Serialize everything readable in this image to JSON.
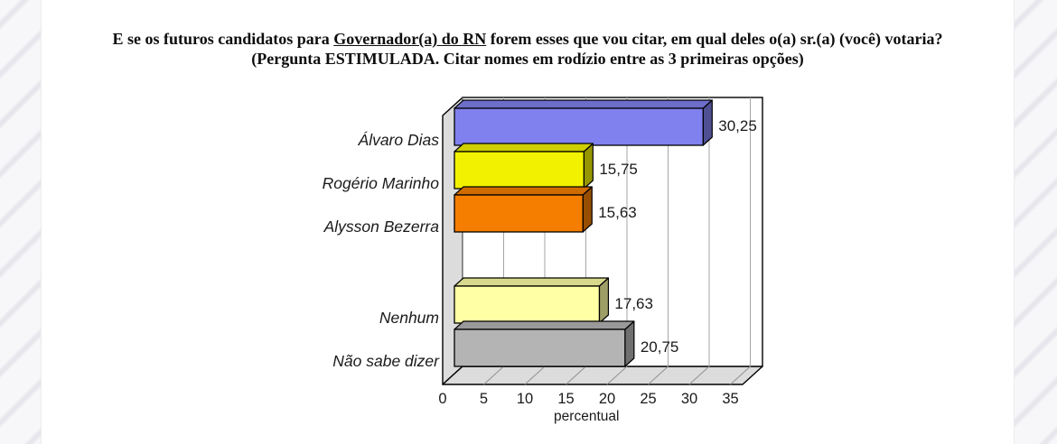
{
  "title": {
    "line1_pre": "E se os futuros candidatos para ",
    "line1_underlined": "Governador(a) do RN",
    "line1_post": " forem esses que vou citar, em qual deles o(a) sr.(a) (você) votaria?",
    "line2": "(Pergunta ESTIMULADA. Citar nomes em rodízio entre as 3 primeiras opções)"
  },
  "chart_data": {
    "type": "bar",
    "orientation": "horizontal",
    "style": "3d",
    "categories": [
      "Álvaro Dias",
      "Rogério Marinho",
      "Alysson Bezerra",
      "Nenhum",
      "Não sabe dizer"
    ],
    "values": [
      30.25,
      15.75,
      15.63,
      17.63,
      20.75
    ],
    "value_labels": [
      "30,25",
      "15,75",
      "15,63",
      "17,63",
      "20,75"
    ],
    "bar_colors": [
      "#8080EE",
      "#F2F200",
      "#F57E00",
      "#FFFFA6",
      "#B4B4B4"
    ],
    "x_ticks": [
      0,
      5,
      10,
      15,
      20,
      25,
      30,
      35
    ],
    "x_tick_labels": [
      "0",
      "5",
      "10",
      "15",
      "20",
      "25",
      "30",
      "35"
    ],
    "xlim": [
      0,
      35
    ],
    "xlabel": "percentual",
    "grid": true,
    "legend": "none",
    "gap_after_index": 2,
    "wall_color": "#DCDCDC",
    "plot_bg": "#FFFFFF",
    "gridline_color": "#A6A6A6",
    "outline_color": "#000000",
    "text_color": "#1A1A1A"
  }
}
